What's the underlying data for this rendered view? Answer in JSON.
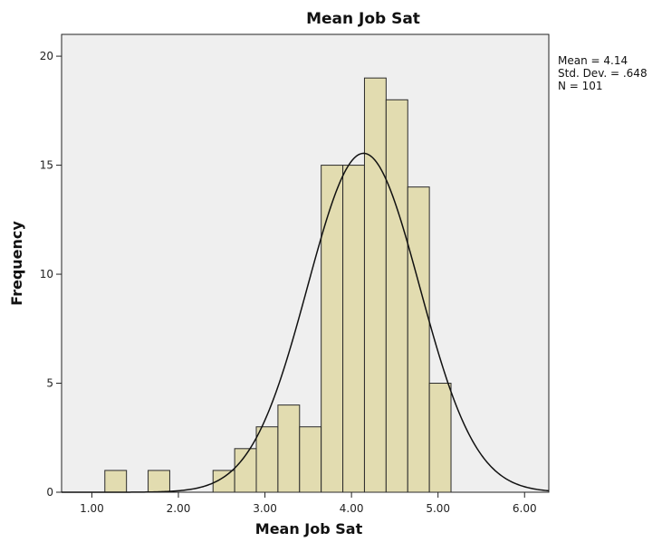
{
  "chart_data": {
    "type": "bar",
    "subtype": "histogram",
    "title": "Mean Job Sat",
    "xlabel": "Mean Job Sat",
    "ylabel": "Frequency",
    "xlim": [
      0.65,
      6.28
    ],
    "ylim": [
      0,
      21
    ],
    "x_ticks": [
      1.0,
      2.0,
      3.0,
      4.0,
      5.0,
      6.0
    ],
    "x_tick_labels": [
      "1.00",
      "2.00",
      "3.00",
      "4.00",
      "5.00",
      "6.00"
    ],
    "y_ticks": [
      0,
      5,
      10,
      15,
      20
    ],
    "y_tick_labels": [
      "0",
      "5",
      "10",
      "15",
      "20"
    ],
    "bin_width": 0.25,
    "bins": [
      {
        "x0": 1.15,
        "x1": 1.4,
        "count": 1
      },
      {
        "x0": 1.65,
        "x1": 1.9,
        "count": 1
      },
      {
        "x0": 2.4,
        "x1": 2.65,
        "count": 1
      },
      {
        "x0": 2.65,
        "x1": 2.9,
        "count": 2
      },
      {
        "x0": 2.9,
        "x1": 3.15,
        "count": 3
      },
      {
        "x0": 3.15,
        "x1": 3.4,
        "count": 4
      },
      {
        "x0": 3.4,
        "x1": 3.65,
        "count": 3
      },
      {
        "x0": 3.65,
        "x1": 3.9,
        "count": 15
      },
      {
        "x0": 3.9,
        "x1": 4.15,
        "count": 15
      },
      {
        "x0": 4.15,
        "x1": 4.4,
        "count": 19
      },
      {
        "x0": 4.4,
        "x1": 4.65,
        "count": 18
      },
      {
        "x0": 4.65,
        "x1": 4.9,
        "count": 14
      },
      {
        "x0": 4.9,
        "x1": 5.15,
        "count": 5
      }
    ],
    "normal_curve": {
      "mean": 4.14,
      "sd": 0.648,
      "n": 101
    },
    "stats_labels": [
      "Mean = 4.14",
      "Std. Dev. = .648",
      "N = 101"
    ],
    "colors": {
      "bar_fill": "#e2dcb0",
      "bar_stroke": "#2a2a2a",
      "plot_background": "#efefef",
      "curve": "#111111"
    },
    "grid": false
  }
}
